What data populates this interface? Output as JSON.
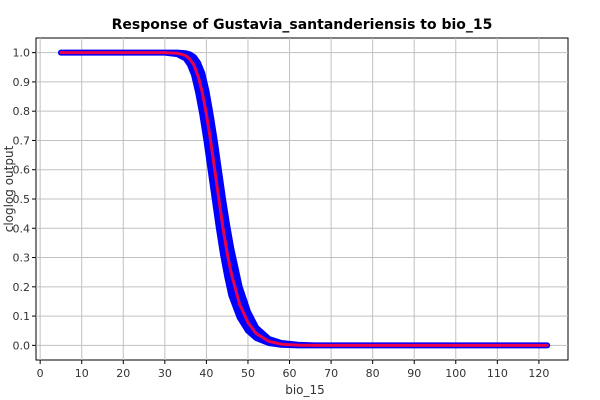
{
  "chart_data": {
    "type": "line",
    "title": "Response of Gustavia_santanderiensis to bio_15",
    "xlabel": "bio_15",
    "ylabel": "cloglog output",
    "xlim": [
      -1,
      127
    ],
    "ylim": [
      -0.05,
      1.05
    ],
    "x_ticks": [
      0,
      10,
      20,
      30,
      40,
      50,
      60,
      70,
      80,
      90,
      100,
      110,
      120
    ],
    "y_ticks": [
      0.0,
      0.1,
      0.2,
      0.3,
      0.4,
      0.5,
      0.6,
      0.7,
      0.8,
      0.9,
      1.0
    ],
    "grid": true,
    "series": [
      {
        "role": "band",
        "color": "#0000ff",
        "x": [
          5,
          30,
          33,
          35,
          36,
          37,
          38,
          39,
          40,
          41,
          42,
          43,
          44,
          45,
          46,
          48,
          50,
          52,
          55,
          58,
          62,
          66,
          70,
          122
        ],
        "lower": [
          1.0,
          1.0,
          0.995,
          0.98,
          0.96,
          0.925,
          0.865,
          0.79,
          0.7,
          0.6,
          0.5,
          0.4,
          0.31,
          0.235,
          0.17,
          0.095,
          0.05,
          0.025,
          0.008,
          0.002,
          0.0,
          0.0,
          0.0,
          0.0
        ],
        "upper": [
          1.0,
          1.0,
          1.0,
          0.998,
          0.994,
          0.985,
          0.965,
          0.93,
          0.87,
          0.79,
          0.7,
          0.6,
          0.5,
          0.41,
          0.33,
          0.2,
          0.115,
          0.06,
          0.022,
          0.008,
          0.002,
          0.0,
          0.0,
          0.0
        ]
      },
      {
        "role": "mean",
        "color": "#e8004a",
        "x": [
          5,
          30,
          33,
          35,
          36,
          37,
          38,
          39,
          40,
          41,
          42,
          43,
          44,
          45,
          46,
          48,
          50,
          52,
          55,
          58,
          62,
          66,
          70,
          122
        ],
        "y": [
          1.0,
          1.0,
          0.998,
          0.99,
          0.978,
          0.958,
          0.92,
          0.865,
          0.79,
          0.7,
          0.6,
          0.5,
          0.4,
          0.315,
          0.245,
          0.14,
          0.078,
          0.04,
          0.014,
          0.004,
          0.001,
          0.0,
          0.0,
          0.0
        ]
      }
    ]
  }
}
